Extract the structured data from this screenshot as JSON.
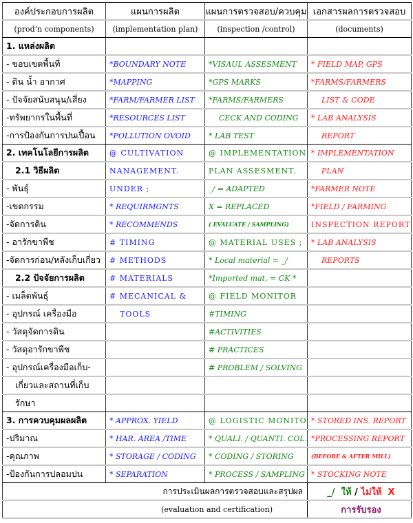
{
  "headers": {
    "thai": [
      "องค์ประกอบการผลิต",
      "แผนการผลิต",
      "แผนการตรวจสอบ/ควบคุม",
      "เอกสารผลการตรวจสอบ"
    ],
    "english": [
      "(prod’n components)",
      "(implementation plan)",
      "(inspection /control)",
      "(documents)"
    ]
  },
  "colors": {
    "plan": "#1a1aff",
    "inspection": "#118811",
    "documents": "#ff1a1a",
    "certification": "#8b1a6b"
  },
  "rows": [
    {
      "section_end": false,
      "cells": [
        {
          "t": "1. แหล่งผลิต",
          "s": "bold"
        },
        {
          "t": ""
        },
        {
          "t": ""
        },
        {
          "t": ""
        }
      ]
    },
    {
      "cells": [
        {
          "t": "- ขอบเขตพื้นที่"
        },
        {
          "t": "*BOUNDARY  NOTE",
          "s": "italic"
        },
        {
          "t": "*VISAUL  ASSESMENT",
          "s": "italic"
        },
        {
          "t": "* FIELD MAP, GPS",
          "s": "italic"
        }
      ]
    },
    {
      "cells": [
        {
          "t": "- ดิน น้ำ อากาศ"
        },
        {
          "t": "*MAPPING",
          "s": "italic"
        },
        {
          "t": "*GPS  MARKS",
          "s": "italic"
        },
        {
          "t": "*FARMS/FARMERS",
          "s": "italic"
        }
      ]
    },
    {
      "cells": [
        {
          "t": "- ปัจจัยสนับสนุน/เสี่ยง"
        },
        {
          "t": "*FARM/FARMER LIST",
          "s": "italic"
        },
        {
          "t": "*FARMS/FARMERS",
          "s": "italic"
        },
        {
          "t": "LIST  & CODE",
          "s": "italic pad"
        }
      ]
    },
    {
      "cells": [
        {
          "t": "-ทรัพยากรในพื้นที่"
        },
        {
          "t": "*RESOURCES  LIST",
          "s": "italic"
        },
        {
          "t": "CECK AND CODING",
          "s": "italic pad"
        },
        {
          "t": "* LAB  ANALYSIS",
          "s": "italic"
        }
      ]
    },
    {
      "section_end": true,
      "cells": [
        {
          "t": "-การป้องกันการปนเปื้อน"
        },
        {
          "t": "*POLLUTION OVOID",
          "s": "italic"
        },
        {
          "t": "* LAB TEST",
          "s": "italic"
        },
        {
          "t": "REPORT",
          "s": "italic pad"
        }
      ]
    },
    {
      "cells": [
        {
          "t": "2. เทคโนโลยีการผลิต",
          "s": "bold"
        },
        {
          "t": "@ CULTIVATION",
          "s": "caps"
        },
        {
          "t": "@ IMPLEMENTATION",
          "s": "caps"
        },
        {
          "t": "* IMPLEMENTATION",
          "s": "italic"
        }
      ]
    },
    {
      "cells": [
        {
          "t": "2.1 วิธีผลิต",
          "s": "bold indent"
        },
        {
          "t": "NANAGEMENT.",
          "s": "caps"
        },
        {
          "t": "PLAN ASSESMENT.",
          "s": "caps"
        },
        {
          "t": "PLAN",
          "s": "italic pad"
        }
      ]
    },
    {
      "cells": [
        {
          "t": "- พันธุ์"
        },
        {
          "t": "UNDER ;",
          "s": "caps"
        },
        {
          "t": "_/ = ADAPTED",
          "s": "italic"
        },
        {
          "t": "*FARMER  NOTE",
          "s": "italic"
        }
      ]
    },
    {
      "cells": [
        {
          "t": "-เขตกรรม"
        },
        {
          "t": "* REQUIRMGNTS",
          "s": "italic"
        },
        {
          "t": "X = REPLACED",
          "s": "italic"
        },
        {
          "t": "*FIELD / FARMING",
          "s": "italic"
        }
      ]
    },
    {
      "cells": [
        {
          "t": "-จัดการดิน"
        },
        {
          "t": "* RECOMMENDS",
          "s": "italic"
        },
        {
          "t": "( EVALUATE / SAMPLING)",
          "s": "small"
        },
        {
          "t": "INSPECTION REPORTS",
          "s": "caps"
        }
      ]
    },
    {
      "cells": [
        {
          "t": "- อารักขาพืช"
        },
        {
          "t": "# TIMING",
          "s": "caps"
        },
        {
          "t": "@ MATERIAL USES ;",
          "s": "caps"
        },
        {
          "t": "* LAB  ANALYSIS",
          "s": "italic"
        }
      ]
    },
    {
      "cells": [
        {
          "t": "-จัดการก่อน/หลังเก็บเกี่ยว"
        },
        {
          "t": "#  METHODS",
          "s": "caps"
        },
        {
          "t": "* Local material = _/",
          "s": "italic"
        },
        {
          "t": "REPORTS",
          "s": "italic pad"
        }
      ]
    },
    {
      "cells": [
        {
          "t": "2.2 ปัจจัยการผลิต",
          "s": "bold indent"
        },
        {
          "t": "# MATERIALS",
          "s": "caps"
        },
        {
          "t": "*Imported mat. = CK *",
          "s": "italic"
        },
        {
          "t": ""
        }
      ]
    },
    {
      "cells": [
        {
          "t": "- เมล็ดพันธุ์"
        },
        {
          "t": "# MECANICAL &",
          "s": "caps"
        },
        {
          "t": "@ FIELD MONITOR",
          "s": "caps"
        },
        {
          "t": ""
        }
      ]
    },
    {
      "cells": [
        {
          "t": "- อุปกรณ์ เครื่องมือ"
        },
        {
          "t": "TOOLS",
          "s": "caps pad"
        },
        {
          "t": "#TIMING",
          "s": "italic"
        },
        {
          "t": ""
        }
      ]
    },
    {
      "cells": [
        {
          "t": "- วัสดุจัดการดิน"
        },
        {
          "t": ""
        },
        {
          "t": "#ACTIVITIES",
          "s": "italic"
        },
        {
          "t": ""
        }
      ]
    },
    {
      "cells": [
        {
          "t": "- วัสดุอารักขาพืช"
        },
        {
          "t": ""
        },
        {
          "t": "# PRACTICES",
          "s": "italic"
        },
        {
          "t": ""
        }
      ]
    },
    {
      "cells": [
        {
          "t": "- อุปกรณ์เครื่องมือเก็บ-"
        },
        {
          "t": ""
        },
        {
          "t": "# PROBLEM / SOLVING",
          "s": "italic"
        },
        {
          "t": ""
        }
      ]
    },
    {
      "cells": [
        {
          "t": "เกี่ยวและสถานที่เก็บ",
          "s": "indent"
        },
        {
          "t": ""
        },
        {
          "t": ""
        },
        {
          "t": ""
        }
      ]
    },
    {
      "section_end": true,
      "cells": [
        {
          "t": "รักษา",
          "s": "indent"
        },
        {
          "t": ""
        },
        {
          "t": ""
        },
        {
          "t": ""
        }
      ]
    },
    {
      "cells": [
        {
          "t": "3. การควบคุมผลผลิต",
          "s": "bold"
        },
        {
          "t": "* APPROX. YIELD",
          "s": "italic"
        },
        {
          "t": "@ LOGISTIC MONITOR",
          "s": "caps"
        },
        {
          "t": "* STORED INS. REPORT",
          "s": "italic"
        }
      ]
    },
    {
      "cells": [
        {
          "t": "-ปริมาณ"
        },
        {
          "t": "* HAR. AREA /TIME",
          "s": "italic"
        },
        {
          "t": "* QUALI. / QUANTI. COL.",
          "s": "italic"
        },
        {
          "t": "*PROCESSING  REPORT",
          "s": "italic"
        }
      ]
    },
    {
      "cells": [
        {
          "t": "-คุณภาพ"
        },
        {
          "t": "* STORAGE / CODING",
          "s": "italic"
        },
        {
          "t": "* CODING / STORING",
          "s": "italic"
        },
        {
          "t": "(BEFORE & AFTER  MILL)",
          "s": "small"
        }
      ]
    },
    {
      "section_end": true,
      "cells": [
        {
          "t": "-ป้องกันการปลอมปน"
        },
        {
          "t": "* SEPARATION",
          "s": "italic"
        },
        {
          "t": "* PROCESS / SAMPLING",
          "s": "italic"
        },
        {
          "t": "* STOCKING  NOTE",
          "s": "italic"
        }
      ]
    }
  ],
  "footer": {
    "evaluation_thai": "การประเมินผลการตรวจสอบและสรุปผล",
    "evaluation_english": "(evaluation and certification)",
    "pass_mark": "_/",
    "pass_label": "ให้",
    "separator": "/",
    "fail_label": "ไม่ให้",
    "fail_mark": "X",
    "certification": "การรับรอง"
  }
}
